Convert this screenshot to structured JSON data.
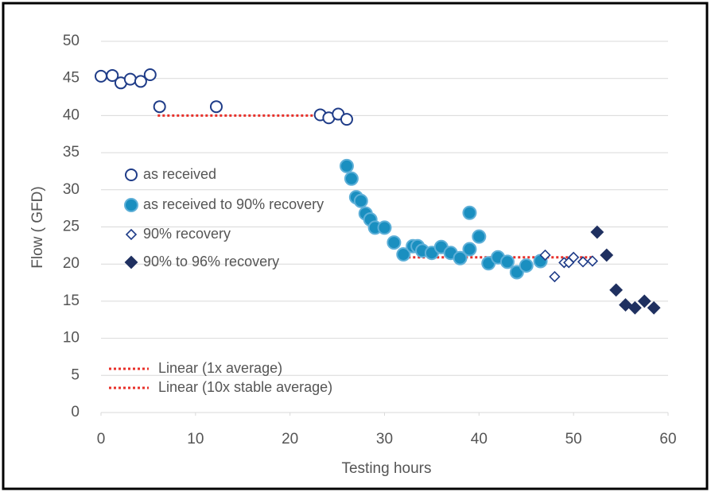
{
  "chart_data": {
    "type": "scatter",
    "xlabel": "Testing hours",
    "ylabel": "Flow ( GFD)",
    "xlim": [
      0,
      60
    ],
    "xticks": [
      0,
      10,
      20,
      30,
      40,
      50,
      60
    ],
    "ylim": [
      0,
      50
    ],
    "yticks": [
      0,
      5,
      10,
      15,
      20,
      25,
      30,
      35,
      40,
      45,
      50
    ],
    "grid": true,
    "series": [
      {
        "name": "as received",
        "color": "#1f3c88",
        "marker": "circle",
        "filled": false,
        "x": [
          0,
          1.2,
          2.1,
          3.1,
          4.2,
          5.2,
          6.2,
          12.2,
          23.2,
          24.1,
          25.1,
          26.0
        ],
        "values": [
          45.3,
          45.4,
          44.4,
          44.9,
          44.6,
          45.5,
          41.2,
          41.2,
          40.1,
          39.7,
          40.2,
          39.5
        ]
      },
      {
        "name": "as received to 90% recovery",
        "color": "#1a8fc0",
        "marker": "circle",
        "filled": true,
        "x": [
          26.0,
          26.5,
          27.0,
          27.5,
          28.0,
          28.5,
          29.0,
          30.0,
          31.0,
          32.0,
          33.0,
          33.5,
          34.0,
          35.0,
          36.0,
          37.0,
          38.0,
          39.0,
          39.0,
          40.0,
          41.0,
          42.0,
          43.0,
          44.0,
          45.0,
          46.5
        ],
        "values": [
          33.2,
          31.5,
          29.0,
          28.5,
          26.8,
          26.0,
          24.9,
          24.9,
          22.9,
          21.3,
          22.4,
          22.4,
          21.8,
          21.5,
          22.3,
          21.5,
          20.8,
          22.0,
          26.9,
          23.7,
          20.1,
          20.9,
          20.3,
          18.9,
          19.8,
          20.4
        ]
      },
      {
        "name": "90% recovery",
        "color": "#1f3c88",
        "marker": "diamond",
        "filled": false,
        "x": [
          47,
          48,
          49,
          49.5,
          50,
          51,
          52
        ],
        "values": [
          21.2,
          18.3,
          20.2,
          20.2,
          20.9,
          20.3,
          20.4
        ]
      },
      {
        "name": "90% to 96% recovery",
        "color": "#1f3060",
        "marker": "diamond",
        "filled": true,
        "x": [
          52.5,
          53.5,
          54.5,
          55.5,
          56.5,
          57.5,
          58.5
        ],
        "values": [
          24.3,
          21.2,
          16.5,
          14.5,
          14.1,
          15.0,
          14.1
        ]
      }
    ],
    "trendlines": [
      {
        "name": "Linear (1x average)",
        "color": "#e8302a",
        "x": [
          6,
          25
        ],
        "values": [
          40,
          40
        ]
      },
      {
        "name": "Linear (10x stable average)",
        "color": "#e8302a",
        "x": [
          32,
          52
        ],
        "values": [
          20.9,
          20.9
        ]
      }
    ]
  }
}
